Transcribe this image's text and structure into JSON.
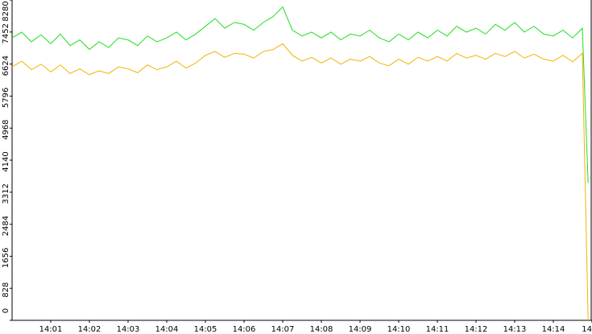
{
  "chart_data": {
    "type": "line",
    "x": [
      0,
      0.25,
      0.5,
      0.75,
      1,
      1.25,
      1.5,
      1.75,
      2,
      2.25,
      2.5,
      2.75,
      3,
      3.25,
      3.5,
      3.75,
      4,
      4.25,
      4.5,
      4.75,
      5,
      5.25,
      5.5,
      5.75,
      6,
      6.25,
      6.5,
      6.75,
      7,
      7.25,
      7.5,
      7.75,
      8,
      8.25,
      8.5,
      8.75,
      9,
      9.25,
      9.5,
      9.75,
      10,
      10.25,
      10.5,
      10.75,
      11,
      11.25,
      11.5,
      11.75,
      12,
      12.25,
      12.5,
      12.75,
      13,
      13.25,
      13.5,
      13.75,
      14,
      14.25,
      14.5,
      14.75,
      14.9
    ],
    "series": [
      {
        "color": "#22dd22",
        "values": [
          7300,
          7450,
          7200,
          7380,
          7150,
          7400,
          7100,
          7250,
          7000,
          7200,
          7050,
          7300,
          7250,
          7100,
          7350,
          7200,
          7300,
          7450,
          7250,
          7400,
          7600,
          7800,
          7550,
          7700,
          7650,
          7500,
          7700,
          7850,
          8100,
          7500,
          7350,
          7450,
          7300,
          7450,
          7250,
          7400,
          7350,
          7500,
          7300,
          7200,
          7400,
          7250,
          7450,
          7300,
          7500,
          7350,
          7600,
          7450,
          7550,
          7400,
          7650,
          7500,
          7700,
          7450,
          7600,
          7400,
          7350,
          7500,
          7300,
          7550,
          3550
        ]
      },
      {
        "color": "#f0b400",
        "values": [
          6550,
          6700,
          6480,
          6620,
          6420,
          6600,
          6380,
          6500,
          6350,
          6450,
          6380,
          6550,
          6500,
          6400,
          6600,
          6480,
          6550,
          6700,
          6520,
          6650,
          6850,
          6950,
          6800,
          6900,
          6880,
          6780,
          6950,
          7000,
          7150,
          6850,
          6700,
          6800,
          6650,
          6780,
          6620,
          6750,
          6700,
          6820,
          6650,
          6580,
          6750,
          6620,
          6800,
          6700,
          6820,
          6700,
          6900,
          6780,
          6850,
          6750,
          6900,
          6820,
          6950,
          6780,
          6880,
          6750,
          6700,
          6850,
          6680,
          6900,
          0
        ]
      }
    ],
    "xlim": [
      0,
      15
    ],
    "xticks": [
      {
        "value": 1,
        "label": "14:01"
      },
      {
        "value": 2,
        "label": "14:02"
      },
      {
        "value": 3,
        "label": "14:03"
      },
      {
        "value": 4,
        "label": "14:04"
      },
      {
        "value": 5,
        "label": "14:05"
      },
      {
        "value": 6,
        "label": "14:06"
      },
      {
        "value": 7,
        "label": "14:07"
      },
      {
        "value": 8,
        "label": "14:08"
      },
      {
        "value": 9,
        "label": "14:09"
      },
      {
        "value": 10,
        "label": "14:10"
      },
      {
        "value": 11,
        "label": "14:11"
      },
      {
        "value": 12,
        "label": "14:12"
      },
      {
        "value": 13,
        "label": "14:13"
      },
      {
        "value": 14,
        "label": "14:14"
      },
      {
        "value": 15,
        "label": "14"
      }
    ],
    "ylim": [
      0,
      8280
    ],
    "yticks": [
      0,
      828,
      1656,
      2484,
      3312,
      4140,
      4968,
      5796,
      6624,
      7452,
      8280
    ]
  }
}
